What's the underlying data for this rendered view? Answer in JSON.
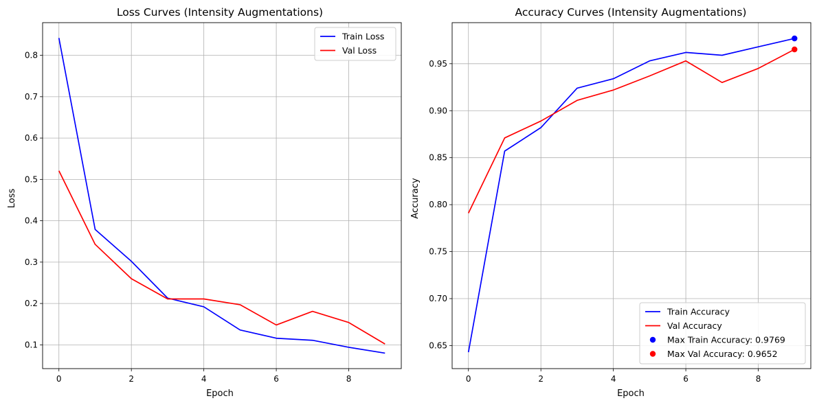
{
  "figure": {
    "background": "#ffffff"
  },
  "chart_data": [
    {
      "type": "line",
      "title": "Loss Curves (Intensity Augmentations)",
      "xlabel": "Epoch",
      "ylabel": "Loss",
      "x": [
        0,
        1,
        2,
        3,
        4,
        5,
        6,
        7,
        8,
        9
      ],
      "xlim": [
        -0.45,
        9.45
      ],
      "ylim": [
        0.0425,
        0.879
      ],
      "xticks": [
        0,
        2,
        4,
        6,
        8
      ],
      "yticks": [
        0.1,
        0.2,
        0.3,
        0.4,
        0.5,
        0.6,
        0.7,
        0.8
      ],
      "ytick_labels": [
        "0.1",
        "0.2",
        "0.3",
        "0.4",
        "0.5",
        "0.6",
        "0.7",
        "0.8"
      ],
      "grid": true,
      "legend_position": "upper right",
      "series": [
        {
          "name": "Train Loss",
          "color": "#0000ff",
          "values": [
            0.842,
            0.379,
            0.302,
            0.213,
            0.192,
            0.136,
            0.116,
            0.111,
            0.094,
            0.08
          ]
        },
        {
          "name": "Val Loss",
          "color": "#ff0000",
          "values": [
            0.521,
            0.343,
            0.26,
            0.211,
            0.211,
            0.197,
            0.148,
            0.181,
            0.154,
            0.102
          ]
        }
      ],
      "points": []
    },
    {
      "type": "line",
      "title": "Accuracy Curves (Intensity Augmentations)",
      "xlabel": "Epoch",
      "ylabel": "Accuracy",
      "x": [
        0,
        1,
        2,
        3,
        4,
        5,
        6,
        7,
        8,
        9
      ],
      "xlim": [
        -0.45,
        9.45
      ],
      "ylim": [
        0.6255,
        0.9937
      ],
      "xticks": [
        0,
        2,
        4,
        6,
        8
      ],
      "yticks": [
        0.65,
        0.7,
        0.75,
        0.8,
        0.85,
        0.9,
        0.95
      ],
      "ytick_labels": [
        "0.65",
        "0.70",
        "0.75",
        "0.80",
        "0.85",
        "0.90",
        "0.95"
      ],
      "grid": true,
      "legend_position": "lower right",
      "series": [
        {
          "name": "Train Accuracy",
          "color": "#0000ff",
          "values": [
            0.643,
            0.857,
            0.882,
            0.924,
            0.934,
            0.953,
            0.962,
            0.959,
            0.968,
            0.9769
          ]
        },
        {
          "name": "Val Accuracy",
          "color": "#ff0000",
          "values": [
            0.791,
            0.871,
            0.889,
            0.911,
            0.922,
            0.937,
            0.953,
            0.93,
            0.945,
            0.9652
          ]
        }
      ],
      "points": [
        {
          "name": "Max Train Accuracy: 0.9769",
          "color": "#0000ff",
          "x": 9,
          "y": 0.9769
        },
        {
          "name": "Max Val Accuracy: 0.9652",
          "color": "#ff0000",
          "x": 9,
          "y": 0.9652
        }
      ]
    }
  ]
}
